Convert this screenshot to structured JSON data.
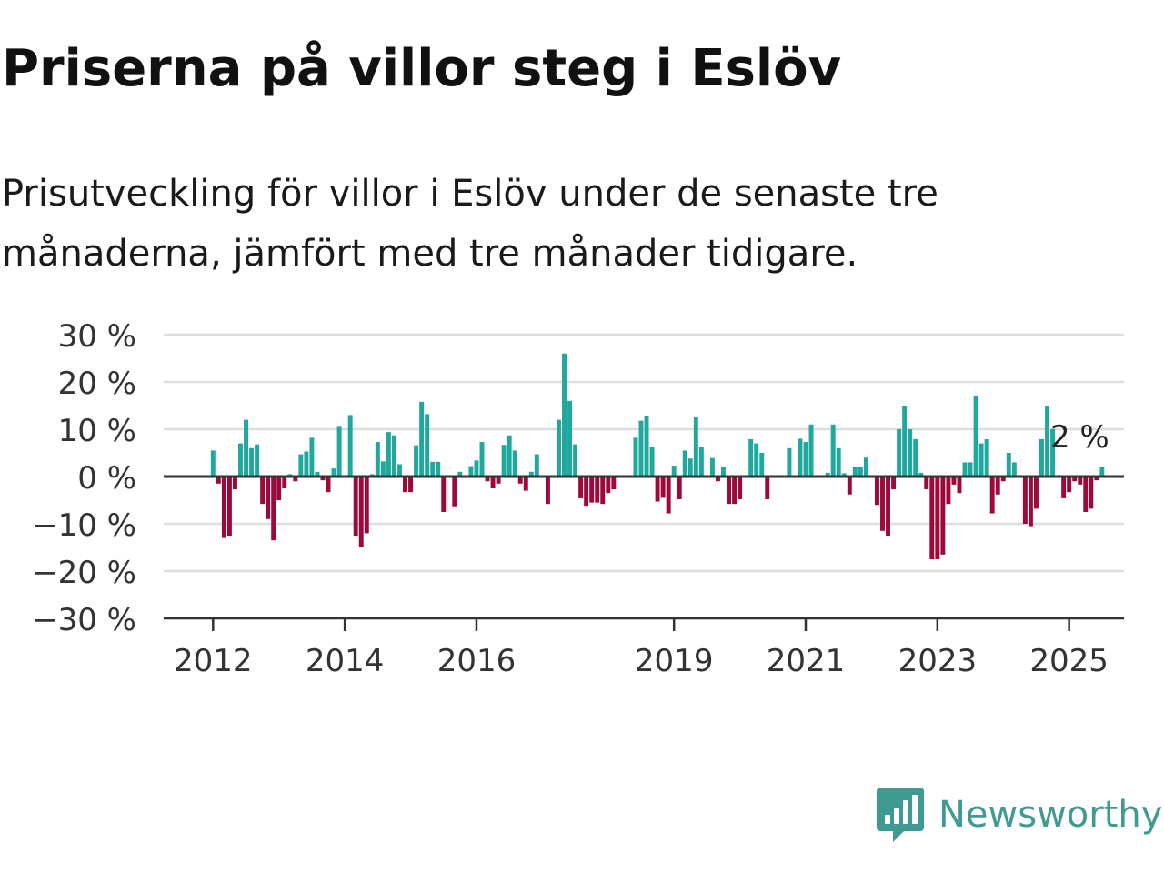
{
  "header": {
    "title": "Priserna på villor steg i Eslöv",
    "subtitle": "Prisutveckling för villor i Eslöv under de senaste tre månaderna, jämfört med tre månader tidigare."
  },
  "logo": {
    "text": "Newsworthy",
    "icon": "newsworthy-bar-chart-icon",
    "color": "#3f9b91"
  },
  "chart_data": {
    "type": "bar",
    "title": "",
    "xlabel": "",
    "ylabel": "",
    "ylim": [
      -30,
      30
    ],
    "yticks": [
      30,
      20,
      10,
      0,
      -10,
      -20,
      -30
    ],
    "ytick_labels": [
      "30 %",
      "20 %",
      "10 %",
      "0 %",
      "−10 %",
      "−20 %",
      "−30 %"
    ],
    "x_range": [
      "2011-04",
      "2025-11"
    ],
    "xticks": [
      "2012-01",
      "2014-01",
      "2016-01",
      "2019-01",
      "2021-01",
      "2023-01",
      "2025-01"
    ],
    "xtick_labels": [
      "2012",
      "2014",
      "2016",
      "2019",
      "2021",
      "2023",
      "2025"
    ],
    "grid": true,
    "colors": {
      "positive": "#1fa89e",
      "negative": "#9c0a3c",
      "grid": "#dddddd",
      "axis": "#333333"
    },
    "annotation": {
      "text": "2 %",
      "month": "2025-03"
    },
    "series": [
      {
        "start": "2012-01",
        "values": [
          5.5,
          -1.5,
          -13,
          -12.5,
          -2.7,
          7,
          12,
          6,
          6.8,
          -5.8,
          -9,
          -13.5,
          -5,
          -2.5,
          0.5,
          -1,
          4.7,
          5.3,
          8.2,
          1,
          -0.8,
          -3.3,
          1.7,
          10.5,
          0,
          13,
          -12.5,
          -15,
          -12,
          0.5,
          7.3,
          3.2,
          9.4,
          8.7,
          2.6,
          -3.3,
          -3.3,
          6.6,
          15.8,
          13.2,
          3.1,
          3.1,
          -7.5,
          0,
          -6.3,
          1,
          0,
          2.2,
          3.4,
          7.3,
          -1,
          -2.5,
          -1.5,
          6.7,
          8.7,
          5.5,
          -1.5,
          -3,
          1,
          4.7,
          0,
          -5.8,
          0,
          12,
          26,
          16,
          6.8,
          -4.6,
          -6.2,
          -5.5,
          -5.5,
          -5.8,
          -3.5,
          -2.7,
          0,
          0,
          0,
          8.2,
          11.8,
          12.8,
          6.2,
          -5.3,
          -4.5,
          -7.8,
          2.3,
          -4.8,
          5.5,
          3.8,
          12.5,
          6.2,
          0,
          3.9,
          -1,
          2,
          -5.8,
          -5.8,
          -4.8,
          0,
          7.9,
          7,
          5,
          -4.8,
          0,
          0,
          0,
          6,
          0,
          8,
          7.3,
          11,
          0,
          0,
          0.8,
          11,
          6,
          0.7,
          -3.8,
          2,
          2.1,
          4,
          0,
          -6,
          -11.5,
          -12.5,
          -2.7,
          10,
          15,
          10,
          7.9,
          0.8,
          -2.7,
          -17.5,
          -17.5,
          -16.5,
          -5.8,
          -1.7,
          -3.5,
          3,
          3,
          17,
          7,
          7.9,
          -7.8,
          -3.8,
          -1,
          5,
          3,
          0,
          -10,
          -10.5,
          -6.8,
          7.9,
          15,
          10,
          0,
          -4.6,
          -3.3,
          -1,
          -1.7,
          -7.5,
          -6.8,
          -0.8,
          2
        ],
        "min_bar_shown": 0.1
      }
    ]
  }
}
